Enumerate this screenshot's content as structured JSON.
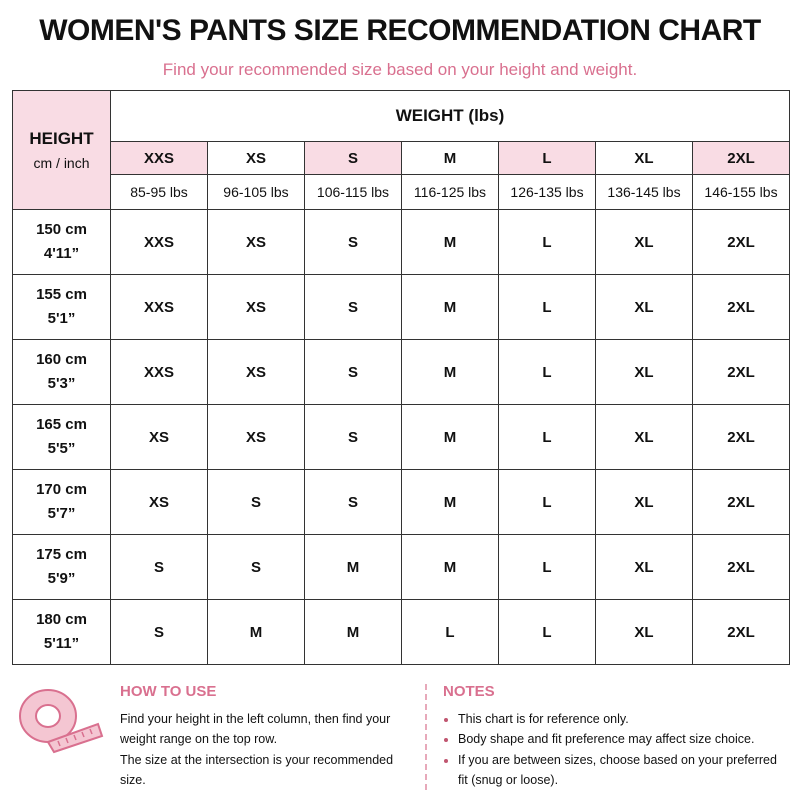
{
  "header": {
    "title": "WOMEN'S PANTS SIZE RECOMMENDATION CHART",
    "subtitle": "Find your recommended size based on your height and weight."
  },
  "table": {
    "height_label": "HEIGHT",
    "height_unit": "cm / inch",
    "weight_label": "WEIGHT (lbs)",
    "sizes": [
      "XXS",
      "XS",
      "S",
      "M",
      "L",
      "XL",
      "2XL"
    ],
    "weight_ranges": [
      "85-95 lbs",
      "96-105 lbs",
      "106-115 lbs",
      "116-125 lbs",
      "126-135 lbs",
      "136-145 lbs",
      "146-155 lbs"
    ],
    "rows": [
      {
        "cm": "150 cm",
        "inch": "4'11”",
        "cells": [
          "XXS",
          "XS",
          "S",
          "M",
          "L",
          "XL",
          "2XL"
        ]
      },
      {
        "cm": "155 cm",
        "inch": "5'1”",
        "cells": [
          "XXS",
          "XS",
          "S",
          "M",
          "L",
          "XL",
          "2XL"
        ]
      },
      {
        "cm": "160 cm",
        "inch": "5'3”",
        "cells": [
          "XXS",
          "XS",
          "S",
          "M",
          "L",
          "XL",
          "2XL"
        ]
      },
      {
        "cm": "165 cm",
        "inch": "5'5”",
        "cells": [
          "XS",
          "XS",
          "S",
          "M",
          "L",
          "XL",
          "2XL"
        ]
      },
      {
        "cm": "170 cm",
        "inch": "5'7”",
        "cells": [
          "XS",
          "S",
          "S",
          "M",
          "L",
          "XL",
          "2XL"
        ]
      },
      {
        "cm": "175 cm",
        "inch": "5'9”",
        "cells": [
          "S",
          "S",
          "M",
          "M",
          "L",
          "XL",
          "2XL"
        ]
      },
      {
        "cm": "180 cm",
        "inch": "5'11”",
        "cells": [
          "S",
          "M",
          "M",
          "L",
          "L",
          "XL",
          "2XL"
        ]
      }
    ]
  },
  "how_to_use": {
    "title": "HOW TO USE",
    "paragraphs": [
      "Find your height in the left column, then find your weight range on the top row.",
      "The size at the intersection is your recommended size."
    ]
  },
  "notes": {
    "title": "NOTES",
    "items": [
      "This chart is for reference only.",
      "Body shape and fit preference may affect size choice.",
      "If you are between sizes, choose based on your preferred fit (snug or loose)."
    ]
  }
}
